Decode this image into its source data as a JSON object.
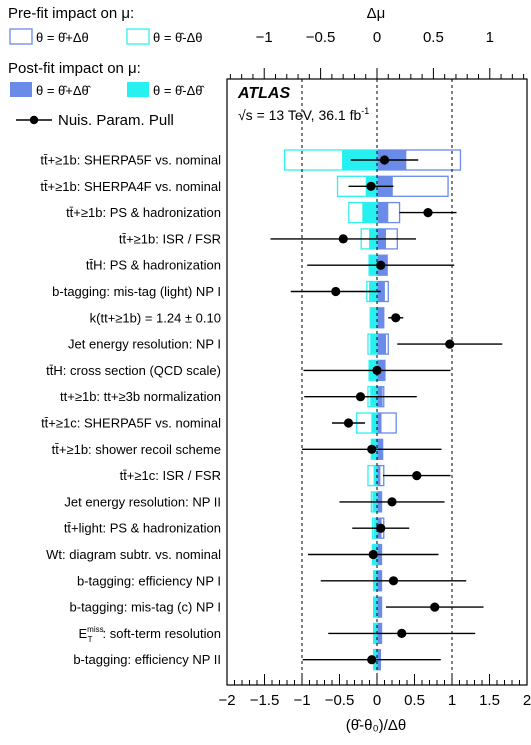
{
  "legend": {
    "prefit_title": "Pre-fit impact on μ:",
    "prefit_plus": "θ = θ̂+Δθ",
    "prefit_minus": "θ = θ̂-Δθ",
    "postfit_title": "Post-fit impact on μ:",
    "postfit_plus": "θ = θ̂+Δθ̂",
    "postfit_minus": "θ = θ̂-Δθ̂",
    "pull_label": "Nuis. Param. Pull"
  },
  "annotation": {
    "experiment": "ATLAS",
    "energy": "√s = 13 TeV, 36.1 fb",
    "energy_sup": "-1"
  },
  "colors": {
    "prefit_plus": "#6A8CE8",
    "prefit_minus": "#2FF0F0",
    "postfit_plus": "#6A8CE8",
    "postfit_minus": "#27F0F0",
    "pull": "#000000"
  },
  "chart_data": {
    "type": "bar",
    "orientation": "horizontal",
    "top_axis": {
      "label": "Δμ",
      "range": [
        -1.33,
        1.33
      ],
      "ticks": [
        -1,
        -0.5,
        0,
        0.5,
        1
      ],
      "tick_labels": [
        "−1",
        "−0.5",
        "0",
        "0.5",
        "1"
      ]
    },
    "bottom_axis": {
      "label": "(θ̂-θ₀)/Δθ",
      "range": [
        -2,
        2
      ],
      "ticks": [
        -2,
        -1.5,
        -1,
        -0.5,
        0,
        0.5,
        1,
        1.5,
        2
      ],
      "tick_labels": [
        "−2",
        "−1.5",
        "−1",
        "−0.5",
        "0",
        "0.5",
        "1",
        "1.5",
        "2"
      ]
    },
    "reference_lines": [
      -1,
      0,
      1
    ],
    "parameters": [
      {
        "label": "tt̄+≥1b: SHERPA5F vs. nominal",
        "prefit_plus": 0.74,
        "prefit_minus": -0.82,
        "postfit_plus": 0.26,
        "postfit_minus": -0.31,
        "pull": 0.1,
        "pull_err_lo": 0.45,
        "pull_err_hi": 0.45
      },
      {
        "label": "tt̄+≥1b: SHERPA4F vs. nominal",
        "prefit_plus": 0.63,
        "prefit_minus": -0.35,
        "postfit_plus": 0.14,
        "postfit_minus": -0.1,
        "pull": -0.08,
        "pull_err_lo": 0.3,
        "pull_err_hi": 0.3
      },
      {
        "label": "tt̄+≥1b: PS & hadronization",
        "prefit_plus": 0.2,
        "prefit_minus": -0.25,
        "postfit_plus": 0.1,
        "postfit_minus": -0.13,
        "pull": 0.68,
        "pull_err_lo": 0.38,
        "pull_err_hi": 0.38
      },
      {
        "label": "tt̄+≥1b: ISR / FSR",
        "prefit_plus": 0.18,
        "prefit_minus": -0.14,
        "postfit_plus": 0.08,
        "postfit_minus": -0.07,
        "pull": -0.45,
        "pull_err_lo": 0.97,
        "pull_err_hi": 0.97
      },
      {
        "label": "tt̄H: PS & hadronization",
        "prefit_plus": 0.09,
        "prefit_minus": -0.07,
        "postfit_plus": 0.09,
        "postfit_minus": -0.07,
        "pull": 0.05,
        "pull_err_lo": 0.98,
        "pull_err_hi": 0.98
      },
      {
        "label": "b-tagging: mis-tag (light) NP I",
        "prefit_plus": 0.1,
        "prefit_minus": -0.09,
        "postfit_plus": 0.07,
        "postfit_minus": -0.07,
        "pull": -0.55,
        "pull_err_lo": 0.6,
        "pull_err_hi": 0.6
      },
      {
        "label": "k(tt+≥1b) = 1.24 ± 0.10",
        "prefit_plus": 0.06,
        "prefit_minus": -0.06,
        "postfit_plus": 0.06,
        "postfit_minus": -0.06,
        "pull": 0.25,
        "pull_err_lo": 0.1,
        "pull_err_hi": 0.1
      },
      {
        "label": "Jet energy resolution: NP I",
        "prefit_plus": 0.1,
        "prefit_minus": -0.08,
        "postfit_plus": 0.08,
        "postfit_minus": -0.06,
        "pull": 0.97,
        "pull_err_lo": 0.7,
        "pull_err_hi": 0.7
      },
      {
        "label": "tt̄H: cross section (QCD scale)",
        "prefit_plus": 0.07,
        "prefit_minus": -0.07,
        "postfit_plus": 0.07,
        "postfit_minus": -0.07,
        "pull": 0.0,
        "pull_err_lo": 0.98,
        "pull_err_hi": 0.98
      },
      {
        "label": "tt+≥1b: tt+≥3b normalization",
        "prefit_plus": 0.06,
        "prefit_minus": -0.08,
        "postfit_plus": 0.05,
        "postfit_minus": -0.06,
        "pull": -0.22,
        "pull_err_lo": 0.75,
        "pull_err_hi": 0.75
      },
      {
        "label": "tt̄+≥1c: SHERPA5F vs. nominal",
        "prefit_plus": 0.17,
        "prefit_minus": -0.18,
        "postfit_plus": 0.04,
        "postfit_minus": -0.05,
        "pull": -0.38,
        "pull_err_lo": 0.22,
        "pull_err_hi": 0.22
      },
      {
        "label": "tt̄+≥1b: shower recoil scheme",
        "prefit_plus": 0.05,
        "prefit_minus": -0.05,
        "postfit_plus": 0.05,
        "postfit_minus": -0.05,
        "pull": -0.07,
        "pull_err_lo": 0.93,
        "pull_err_hi": 0.93
      },
      {
        "label": "tt̄+≥1c: ISR / FSR",
        "prefit_plus": 0.06,
        "prefit_minus": -0.08,
        "postfit_plus": 0.03,
        "postfit_minus": -0.03,
        "pull": 0.53,
        "pull_err_lo": 0.45,
        "pull_err_hi": 0.45
      },
      {
        "label": "Jet energy resolution: NP II",
        "prefit_plus": 0.04,
        "prefit_minus": -0.05,
        "postfit_plus": 0.04,
        "postfit_minus": -0.04,
        "pull": 0.2,
        "pull_err_lo": 0.7,
        "pull_err_hi": 0.7
      },
      {
        "label": "tt̄+light: PS & hadronization",
        "prefit_plus": 0.06,
        "prefit_minus": -0.04,
        "postfit_plus": 0.04,
        "postfit_minus": -0.03,
        "pull": 0.05,
        "pull_err_lo": 0.38,
        "pull_err_hi": 0.38
      },
      {
        "label": "Wt: diagram subtr. vs. nominal",
        "prefit_plus": 0.04,
        "prefit_minus": -0.04,
        "postfit_plus": 0.04,
        "postfit_minus": -0.04,
        "pull": -0.05,
        "pull_err_lo": 0.87,
        "pull_err_hi": 0.87
      },
      {
        "label": "b-tagging: efficiency NP I",
        "prefit_plus": 0.04,
        "prefit_minus": -0.03,
        "postfit_plus": 0.04,
        "postfit_minus": -0.03,
        "pull": 0.22,
        "pull_err_lo": 0.97,
        "pull_err_hi": 0.97
      },
      {
        "label": "b-tagging: mis-tag (c) NP I",
        "prefit_plus": 0.04,
        "prefit_minus": -0.03,
        "postfit_plus": 0.04,
        "postfit_minus": -0.03,
        "pull": 0.77,
        "pull_err_lo": 0.65,
        "pull_err_hi": 0.65
      },
      {
        "label": "E_T^miss: soft-term resolution",
        "prefit_plus": 0.04,
        "prefit_minus": -0.03,
        "postfit_plus": 0.04,
        "postfit_minus": -0.03,
        "pull": 0.33,
        "pull_err_lo": 0.98,
        "pull_err_hi": 0.98
      },
      {
        "label": "b-tagging: efficiency NP II",
        "prefit_plus": 0.03,
        "prefit_minus": -0.03,
        "postfit_plus": 0.03,
        "postfit_minus": -0.03,
        "pull": -0.07,
        "pull_err_lo": 0.92,
        "pull_err_hi": 0.92
      }
    ]
  }
}
